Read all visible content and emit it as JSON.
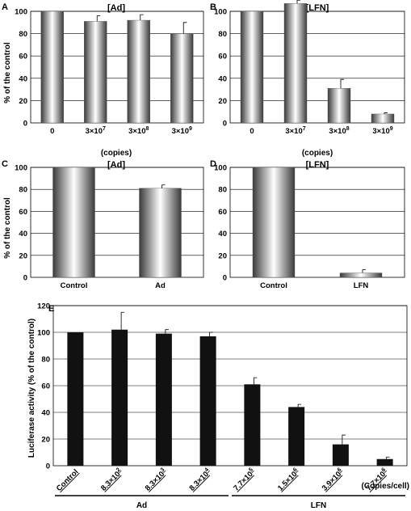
{
  "chart_data": [
    {
      "panel": "A",
      "type": "bar",
      "title": "[Ad]",
      "ylabel": "% of the control",
      "xlabel": "(copies)",
      "ylim": [
        0,
        100
      ],
      "yticks": [
        "0",
        "20",
        "40",
        "60",
        "80",
        "100"
      ],
      "grid": true,
      "categories": [
        {
          "base": "0",
          "exp": ""
        },
        {
          "base": "3×10",
          "exp": "7"
        },
        {
          "base": "3×10",
          "exp": "8"
        },
        {
          "base": "3×10",
          "exp": "9"
        }
      ],
      "values": [
        100,
        91,
        92,
        80
      ],
      "errors": [
        0,
        5,
        5,
        10
      ],
      "bar_style": "gradient"
    },
    {
      "panel": "B",
      "type": "bar",
      "title": "[LFN]",
      "ylabel": "",
      "xlabel": "(copies)",
      "ylim": [
        0,
        100
      ],
      "yticks": [
        "0",
        "20",
        "40",
        "60",
        "80",
        "100"
      ],
      "grid": true,
      "categories": [
        {
          "base": "0",
          "exp": ""
        },
        {
          "base": "3×10",
          "exp": "7"
        },
        {
          "base": "3×10",
          "exp": "8"
        },
        {
          "base": "3×10",
          "exp": "9"
        }
      ],
      "values": [
        100,
        107,
        31,
        8
      ],
      "errors": [
        0,
        3,
        8,
        1
      ],
      "bar_style": "gradient"
    },
    {
      "panel": "C",
      "type": "bar",
      "title": "[Ad]",
      "ylabel": "% of the control",
      "xlabel": "",
      "ylim": [
        0,
        100
      ],
      "yticks": [
        "0",
        "20",
        "40",
        "60",
        "80",
        "100"
      ],
      "grid": true,
      "categories": [
        {
          "base": "Control",
          "exp": ""
        },
        {
          "base": "Ad",
          "exp": ""
        }
      ],
      "values": [
        100,
        81
      ],
      "errors": [
        0,
        3
      ],
      "bar_style": "gradient"
    },
    {
      "panel": "D",
      "type": "bar",
      "title": "[LFN]",
      "ylabel": "",
      "xlabel": "",
      "ylim": [
        0,
        100
      ],
      "yticks": [
        "0",
        "20",
        "40",
        "60",
        "80",
        "100"
      ],
      "grid": true,
      "categories": [
        {
          "base": "Control",
          "exp": ""
        },
        {
          "base": "LFN",
          "exp": ""
        }
      ],
      "values": [
        100,
        4
      ],
      "errors": [
        0,
        3
      ],
      "bar_style": "gradient"
    },
    {
      "panel": "E",
      "type": "bar",
      "title": "",
      "ylabel": "Luciferase activity (% of the control)",
      "xlabel": "(Copies/cell)",
      "ylim": [
        0,
        120
      ],
      "yticks": [
        "0",
        "20",
        "40",
        "60",
        "80",
        "100",
        "120"
      ],
      "grid": true,
      "categories": [
        {
          "base": "Control",
          "exp": ""
        },
        {
          "base": "8.3×10",
          "exp": "2"
        },
        {
          "base": "8.3×10",
          "exp": "3"
        },
        {
          "base": "8.3×10",
          "exp": "4"
        },
        {
          "base": "7.7×10",
          "exp": "5"
        },
        {
          "base": "1.5×10",
          "exp": "6"
        },
        {
          "base": "3.9×10",
          "exp": "6"
        },
        {
          "base": "7.7×10",
          "exp": "6"
        }
      ],
      "values": [
        100,
        102,
        99,
        97,
        61,
        44,
        16,
        5
      ],
      "errors": [
        0,
        13,
        3,
        3,
        5,
        2,
        7,
        1.5
      ],
      "bar_style": "solid",
      "groups": [
        {
          "label": "Ad",
          "from": 0,
          "to": 3
        },
        {
          "label": "LFN",
          "from": 4,
          "to": 7
        }
      ]
    }
  ],
  "colors": {
    "bar_solid": "#111111",
    "bar_gradient_edge": "#3a3a3a",
    "bar_gradient_center": "#ffffff"
  }
}
